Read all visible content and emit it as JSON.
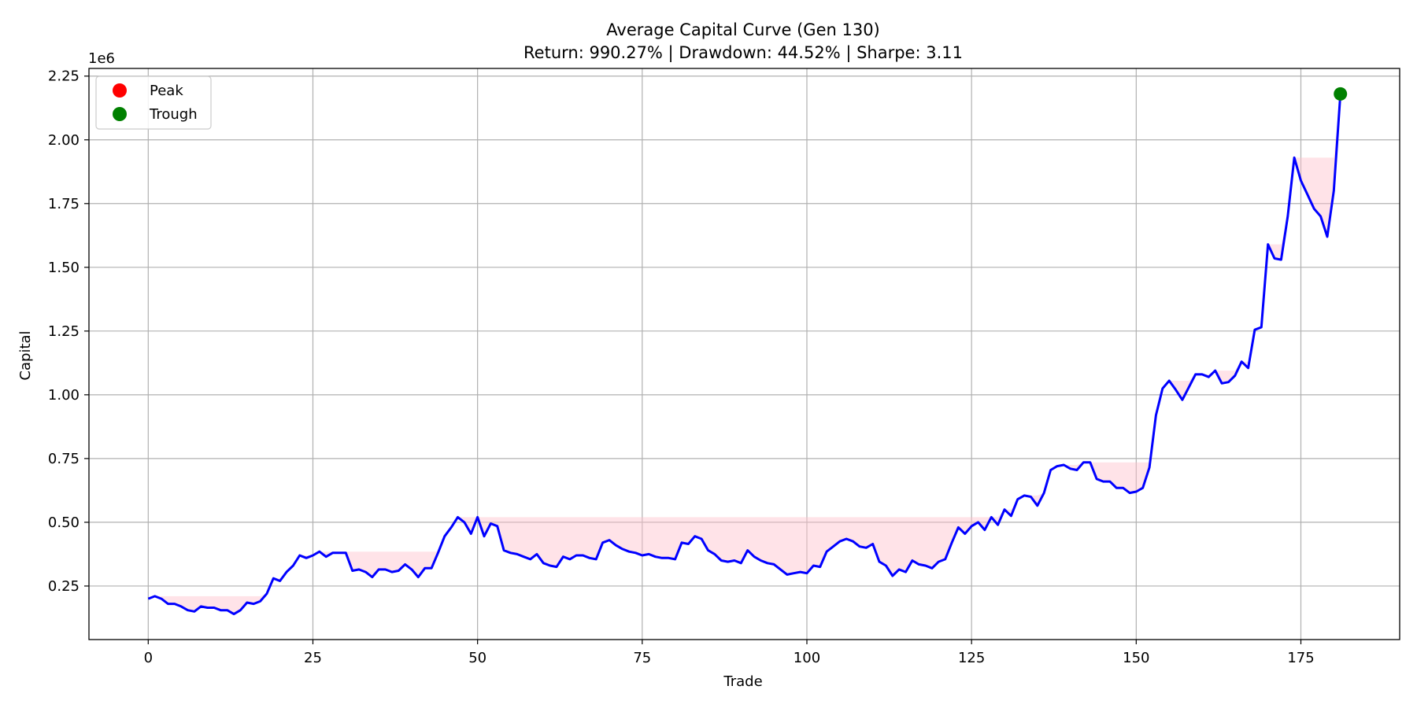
{
  "chart_data": {
    "type": "line",
    "title": "Average Capital Curve (Gen 130)",
    "subtitle": "Return: 990.27% | Drawdown: 44.52% | Sharpe: 3.11",
    "xlabel": "Trade",
    "ylabel": "Capital",
    "y_scale_label": "1e6",
    "xlim": [
      -9,
      190
    ],
    "ylim": [
      0.04,
      2.28
    ],
    "xticks": [
      0,
      25,
      50,
      75,
      100,
      125,
      150,
      175
    ],
    "xtick_labels": [
      "0",
      "25",
      "50",
      "75",
      "100",
      "125",
      "150",
      "175"
    ],
    "yticks": [
      0.25,
      0.5,
      0.75,
      1.0,
      1.25,
      1.5,
      1.75,
      2.0,
      2.25
    ],
    "ytick_labels": [
      "0.25",
      "0.50",
      "0.75",
      "1.00",
      "1.25",
      "1.50",
      "1.75",
      "2.00",
      "2.25"
    ],
    "grid": true,
    "legend_position": "top-left",
    "legend": [
      {
        "label": "Peak",
        "color": "#ff0000"
      },
      {
        "label": "Trough",
        "color": "#008000"
      }
    ],
    "line_color": "#0000ff",
    "drawdown_fill_color": "#ffc0cb",
    "trough_point": {
      "x": 181,
      "y": 2.18
    },
    "series": [
      {
        "values": [
          0.2,
          0.21,
          0.2,
          0.18,
          0.18,
          0.17,
          0.155,
          0.15,
          0.17,
          0.165,
          0.165,
          0.155,
          0.155,
          0.14,
          0.155,
          0.185,
          0.18,
          0.19,
          0.22,
          0.28,
          0.27,
          0.305,
          0.33,
          0.37,
          0.36,
          0.37,
          0.385,
          0.365,
          0.38,
          0.38,
          0.38,
          0.31,
          0.315,
          0.305,
          0.285,
          0.315,
          0.315,
          0.305,
          0.31,
          0.335,
          0.315,
          0.285,
          0.32,
          0.32,
          0.38,
          0.445,
          0.48,
          0.52,
          0.5,
          0.455,
          0.52,
          0.445,
          0.495,
          0.485,
          0.39,
          0.38,
          0.375,
          0.365,
          0.355,
          0.375,
          0.34,
          0.33,
          0.325,
          0.365,
          0.355,
          0.37,
          0.37,
          0.36,
          0.355,
          0.42,
          0.43,
          0.41,
          0.395,
          0.385,
          0.38,
          0.37,
          0.375,
          0.365,
          0.36,
          0.36,
          0.355,
          0.42,
          0.415,
          0.445,
          0.435,
          0.39,
          0.375,
          0.35,
          0.345,
          0.35,
          0.34,
          0.39,
          0.365,
          0.35,
          0.34,
          0.335,
          0.315,
          0.295,
          0.3,
          0.305,
          0.3,
          0.33,
          0.325,
          0.385,
          0.405,
          0.425,
          0.435,
          0.425,
          0.405,
          0.4,
          0.415,
          0.345,
          0.33,
          0.29,
          0.315,
          0.305,
          0.35,
          0.335,
          0.33,
          0.32,
          0.345,
          0.355,
          0.42,
          0.48,
          0.455,
          0.485,
          0.5,
          0.47,
          0.52,
          0.49,
          0.55,
          0.525,
          0.59,
          0.605,
          0.6,
          0.565,
          0.615,
          0.705,
          0.72,
          0.725,
          0.71,
          0.705,
          0.735,
          0.735,
          0.67,
          0.66,
          0.66,
          0.635,
          0.635,
          0.615,
          0.62,
          0.635,
          0.715,
          0.92,
          1.025,
          1.055,
          1.02,
          0.98,
          1.03,
          1.08,
          1.08,
          1.07,
          1.095,
          1.045,
          1.05,
          1.075,
          1.13,
          1.105,
          1.255,
          1.265,
          1.59,
          1.535,
          1.53,
          1.7,
          1.93,
          1.84,
          1.785,
          1.73,
          1.7,
          1.62,
          1.8,
          2.18
        ]
      }
    ]
  }
}
